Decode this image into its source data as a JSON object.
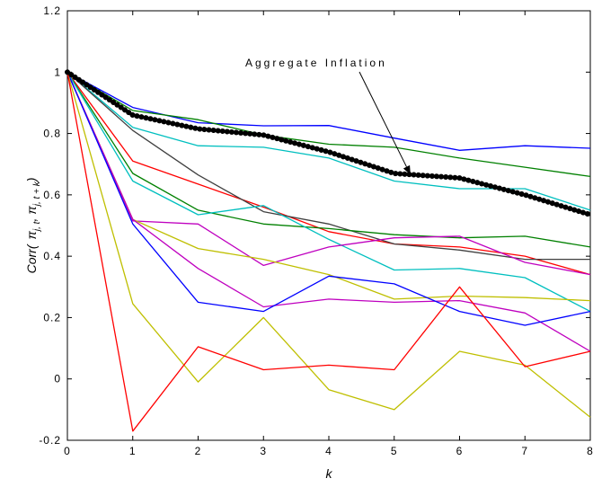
{
  "chart_data": {
    "type": "line",
    "title": "",
    "xlabel": "k",
    "ylabel": {
      "prefix": "Corr(",
      "sym1": "π",
      "sub1": "j, t",
      "comma": ",",
      "sym2": "π",
      "sub2": "j, t + k",
      "suffix": ")"
    },
    "xlim": [
      0,
      8
    ],
    "ylim": [
      -0.2,
      1.2
    ],
    "xticks": [
      0,
      1,
      2,
      3,
      4,
      5,
      6,
      7,
      8
    ],
    "xtick_labels": [
      "0",
      "1",
      "2",
      "3",
      "4",
      "5",
      "6",
      "7",
      "8"
    ],
    "yticks": [
      -0.2,
      0,
      0.2,
      0.4,
      0.6,
      0.8,
      1,
      1.2
    ],
    "ytick_labels": [
      "-0.2",
      "0",
      "0.2",
      "0.4",
      "0.6",
      "0.8",
      "1",
      "1.2"
    ],
    "grid": false,
    "x": [
      0,
      1,
      2,
      3,
      4,
      5,
      6,
      7,
      8
    ],
    "series": [
      {
        "color": "#0000ff",
        "values": [
          1.0,
          0.885,
          0.835,
          0.825,
          0.826,
          0.785,
          0.745,
          0.76,
          0.752
        ]
      },
      {
        "color": "#008000",
        "values": [
          1.0,
          0.875,
          0.845,
          0.795,
          0.765,
          0.755,
          0.72,
          0.69,
          0.66
        ]
      },
      {
        "color": "#00bfbf",
        "values": [
          1.0,
          0.82,
          0.76,
          0.755,
          0.72,
          0.645,
          0.62,
          0.62,
          0.55
        ]
      },
      {
        "color": "#ff0000",
        "values": [
          1.0,
          0.71,
          0.635,
          0.56,
          0.48,
          0.44,
          0.43,
          0.4,
          0.34
        ]
      },
      {
        "color": "#404040",
        "values": [
          1.0,
          0.81,
          0.665,
          0.545,
          0.505,
          0.44,
          0.42,
          0.39,
          0.39
        ]
      },
      {
        "color": "#008000",
        "values": [
          1.0,
          0.67,
          0.55,
          0.505,
          0.49,
          0.47,
          0.46,
          0.465,
          0.43
        ]
      },
      {
        "color": "#00bfbf",
        "values": [
          1.0,
          0.645,
          0.535,
          0.565,
          0.455,
          0.355,
          0.36,
          0.33,
          0.22
        ]
      },
      {
        "color": "#bf00bf",
        "values": [
          1.0,
          0.515,
          0.505,
          0.37,
          0.43,
          0.46,
          0.465,
          0.38,
          0.34
        ]
      },
      {
        "color": "#bfbf00",
        "values": [
          1.0,
          0.52,
          0.425,
          0.39,
          0.34,
          0.26,
          0.27,
          0.265,
          0.255
        ]
      },
      {
        "color": "#bf00bf",
        "values": [
          1.0,
          0.52,
          0.36,
          0.235,
          0.26,
          0.25,
          0.255,
          0.215,
          0.09
        ]
      },
      {
        "color": "#0000ff",
        "values": [
          1.0,
          0.505,
          0.25,
          0.22,
          0.335,
          0.31,
          0.22,
          0.175,
          0.22
        ]
      },
      {
        "color": "#bfbf00",
        "values": [
          1.0,
          0.245,
          -0.01,
          0.2,
          -0.035,
          -0.1,
          0.09,
          0.045,
          -0.125
        ]
      },
      {
        "color": "#ff0000",
        "values": [
          1.0,
          -0.17,
          0.105,
          0.03,
          0.045,
          0.03,
          0.3,
          0.04,
          0.09
        ]
      },
      {
        "name": "Aggregate Inflation",
        "color": "#000000",
        "bold": true,
        "values": [
          1.0,
          0.86,
          0.815,
          0.795,
          0.74,
          0.67,
          0.655,
          0.6,
          0.535
        ]
      }
    ],
    "annotations": [
      {
        "text": "Aggregate Inflation",
        "arrow_to": [
          5.25,
          0.665
        ]
      }
    ]
  }
}
